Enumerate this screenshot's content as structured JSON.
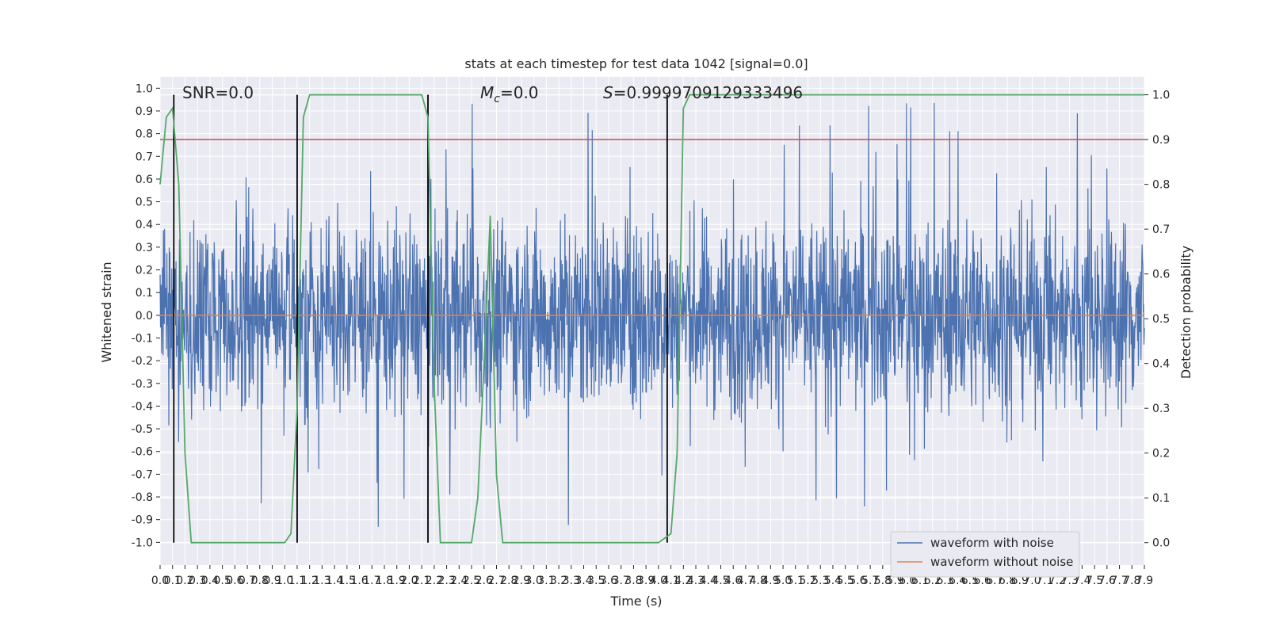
{
  "chart_data": {
    "type": "line",
    "title": "stats at each timestep for test data 1042 [signal=0.0]",
    "xlabel": "Time (s)",
    "ylabel_left": "Whitened strain",
    "ylabel_right": "Detection probability",
    "xlim": [
      0.0,
      7.9
    ],
    "ylim_left": [
      -1.1,
      1.05
    ],
    "ylim_right": [
      -0.05,
      1.04
    ],
    "grid": true,
    "x_ticks": [
      "0.0",
      "0.1",
      "0.2",
      "0.3",
      "0.4",
      "0.5",
      "0.6",
      "0.7",
      "0.8",
      "0.9",
      "1.0",
      "1.1",
      "1.2",
      "1.3",
      "1.4",
      "1.5",
      "1.6",
      "1.7",
      "1.8",
      "1.9",
      "2.0",
      "2.1",
      "2.2",
      "2.3",
      "2.4",
      "2.5",
      "2.6",
      "2.7",
      "2.8",
      "2.9",
      "3.0",
      "3.1",
      "3.2",
      "3.3",
      "3.4",
      "3.5",
      "3.6",
      "3.7",
      "3.8",
      "3.9",
      "4.0",
      "4.1",
      "4.2",
      "4.3",
      "4.4",
      "4.5",
      "4.6",
      "4.7",
      "4.8",
      "4.9",
      "5.0",
      "5.1",
      "5.2",
      "5.3",
      "5.4",
      "5.5",
      "5.6",
      "5.7",
      "5.8",
      "5.9",
      "6.0",
      "6.1",
      "6.2",
      "6.3",
      "6.4",
      "6.5",
      "6.6",
      "6.7",
      "6.8",
      "6.9",
      "7.0",
      "7.1",
      "7.2",
      "7.3",
      "7.4",
      "7.5",
      "7.6",
      "7.7",
      "7.8",
      "7.9"
    ],
    "y_ticks_left": [
      "1.0",
      "0.9",
      "0.8",
      "0.7",
      "0.6",
      "0.5",
      "0.4",
      "0.3",
      "0.2",
      "0.1",
      "0.0",
      "-0.1",
      "-0.2",
      "-0.3",
      "-0.4",
      "-0.5",
      "-0.6",
      "-0.7",
      "-0.8",
      "-0.9",
      "-1.0"
    ],
    "y_ticks_right": [
      "1.0",
      "0.9",
      "0.8",
      "0.7",
      "0.6",
      "0.5",
      "0.4",
      "0.3",
      "0.2",
      "0.1",
      "0.0"
    ],
    "annotations": {
      "snr": "SNR=0.0",
      "mc_symbol": "M",
      "mc_sub": "c",
      "mc_value": "=0.0",
      "s_symbol": "S",
      "s_value": "=0.9999709129333496"
    },
    "legend": {
      "placement": "lower-right",
      "entries": [
        "waveform with noise",
        "waveform without noise"
      ]
    },
    "colors": {
      "noise": "#4c72b0",
      "clean": "#dd8452",
      "probability": "#55a868",
      "threshold": "#c44e52",
      "markers": "#000000",
      "plot_bg": "#eaeaf2",
      "grid": "#ffffff"
    },
    "series": [
      {
        "name": "waveform with noise",
        "axis": "left",
        "noise_amplitude_typical": 0.38,
        "noise_amplitude_peak": 0.95
      },
      {
        "name": "waveform without noise",
        "axis": "left",
        "x": [
          0.0,
          7.9
        ],
        "y": [
          0.0,
          0.0
        ]
      },
      {
        "axis": "right",
        "x": [
          0.0,
          0.05,
          0.1,
          0.15,
          0.2,
          0.25,
          0.3,
          1.0,
          1.05,
          1.1,
          1.15,
          1.2,
          1.25,
          1.3,
          2.1,
          2.15,
          2.2,
          2.25,
          2.3,
          2.5,
          2.55,
          2.6,
          2.65,
          2.7,
          2.75,
          3.5,
          3.6,
          3.9,
          4.0,
          4.05,
          4.1,
          4.15,
          4.2,
          4.25,
          7.9
        ],
        "y": [
          0.8,
          0.95,
          0.97,
          0.8,
          0.2,
          0.0,
          0.0,
          0.0,
          0.02,
          0.3,
          0.95,
          1.0,
          1.0,
          1.0,
          1.0,
          0.95,
          0.35,
          0.0,
          0.0,
          0.0,
          0.1,
          0.4,
          0.73,
          0.15,
          0.0,
          0.0,
          0.0,
          0.0,
          0.0,
          0.01,
          0.02,
          0.2,
          0.97,
          1.0,
          1.0
        ]
      },
      {
        "axis": "right",
        "x": [
          0.0,
          7.9
        ],
        "y": [
          0.9,
          0.9
        ]
      }
    ],
    "vertical_markers_x": [
      0.11,
      1.1,
      2.15,
      4.07
    ]
  }
}
